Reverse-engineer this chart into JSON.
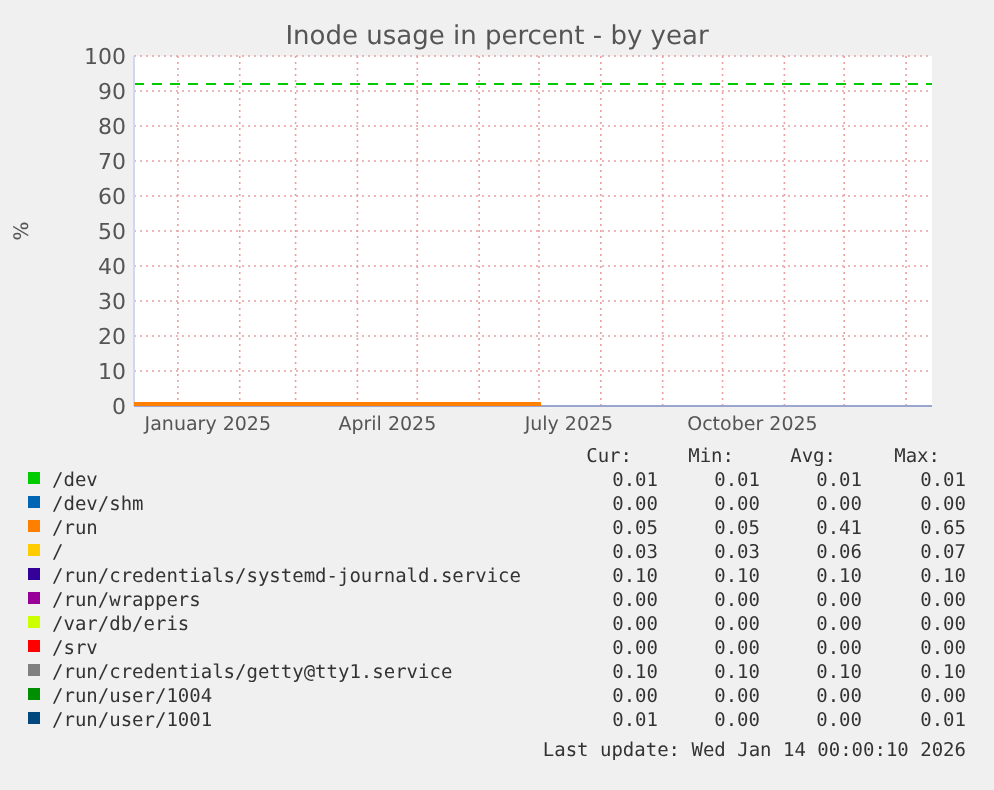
{
  "chart_data": {
    "type": "line",
    "title": "Inode usage in percent - by year",
    "ylabel": "%",
    "xlim": [
      "2024-12-10",
      "2026-01-14"
    ],
    "ylim": [
      0,
      100
    ],
    "yticks": [
      0,
      10,
      20,
      30,
      40,
      50,
      60,
      70,
      80,
      90,
      100
    ],
    "xticks": [
      {
        "value": "2025-01-01",
        "label": null
      },
      {
        "value": "2025-01-16",
        "label": "January 2025"
      },
      {
        "value": "2025-02-01",
        "label": null
      },
      {
        "value": "2025-03-01",
        "label": null
      },
      {
        "value": "2025-04-01",
        "label": null
      },
      {
        "value": "2025-04-16",
        "label": "April 2025"
      },
      {
        "value": "2025-05-01",
        "label": null
      },
      {
        "value": "2025-06-01",
        "label": null
      },
      {
        "value": "2025-07-01",
        "label": null
      },
      {
        "value": "2025-07-16",
        "label": "July 2025"
      },
      {
        "value": "2025-08-01",
        "label": null
      },
      {
        "value": "2025-09-01",
        "label": null
      },
      {
        "value": "2025-10-01",
        "label": null
      },
      {
        "value": "2025-10-16",
        "label": "October 2025"
      },
      {
        "value": "2025-11-01",
        "label": null
      },
      {
        "value": "2025-12-01",
        "label": null
      },
      {
        "value": "2026-01-01",
        "label": null
      }
    ],
    "grid": true,
    "legend": "bottom",
    "x": [
      "2024-12-10",
      "2025-07-02"
    ],
    "series": [
      {
        "name": "/dev",
        "color": "#00cc00",
        "values": [
          null,
          null
        ]
      },
      {
        "name": "/dev/shm",
        "color": "#0066b3",
        "values": [
          null,
          null
        ]
      },
      {
        "name": "/run",
        "color": "#ff8000",
        "values": [
          0.6,
          0.6
        ]
      },
      {
        "name": "/",
        "color": "#ffcc00",
        "values": [
          null,
          null
        ]
      },
      {
        "name": "/run/credentials/systemd-journald.service",
        "color": "#330099",
        "values": [
          null,
          null
        ]
      },
      {
        "name": "/run/wrappers",
        "color": "#990099",
        "values": [
          null,
          null
        ]
      },
      {
        "name": "/var/db/eris",
        "color": "#ccff00",
        "values": [
          null,
          null
        ]
      },
      {
        "name": "/srv",
        "color": "#ff0000",
        "values": [
          null,
          null
        ]
      },
      {
        "name": "/run/credentials/getty@tty1.service",
        "color": "#808080",
        "values": [
          null,
          null
        ]
      },
      {
        "name": "/run/user/1004",
        "color": "#008f00",
        "values": [
          null,
          null
        ]
      },
      {
        "name": "/run/user/1001",
        "color": "#00487d",
        "values": [
          null,
          null
        ]
      }
    ],
    "ref_lines": [
      {
        "axis": "y",
        "value": 92,
        "color": "#00cc00",
        "line_style": "dashed"
      }
    ],
    "annotations": [
      "Cur:",
      "Min:",
      "Avg:",
      "Max:",
      "0.01",
      "0.01",
      "0.01",
      "0.01",
      "0.00",
      "0.00",
      "0.00",
      "0.00",
      "0.05",
      "0.05",
      "0.41",
      "0.65",
      "0.03",
      "0.03",
      "0.06",
      "0.07",
      "0.10",
      "0.10",
      "0.10",
      "0.10",
      "0.00",
      "0.00",
      "0.00",
      "0.00",
      "0.00",
      "0.00",
      "0.00",
      "0.00",
      "0.00",
      "0.00",
      "0.00",
      "0.00",
      "0.10",
      "0.10",
      "0.10",
      "0.10",
      "0.00",
      "0.00",
      "0.00",
      "0.00",
      "0.01",
      "0.00",
      "0.00",
      "0.01",
      "Last update: Wed Jan 14 00:00:10 2026"
    ]
  }
}
